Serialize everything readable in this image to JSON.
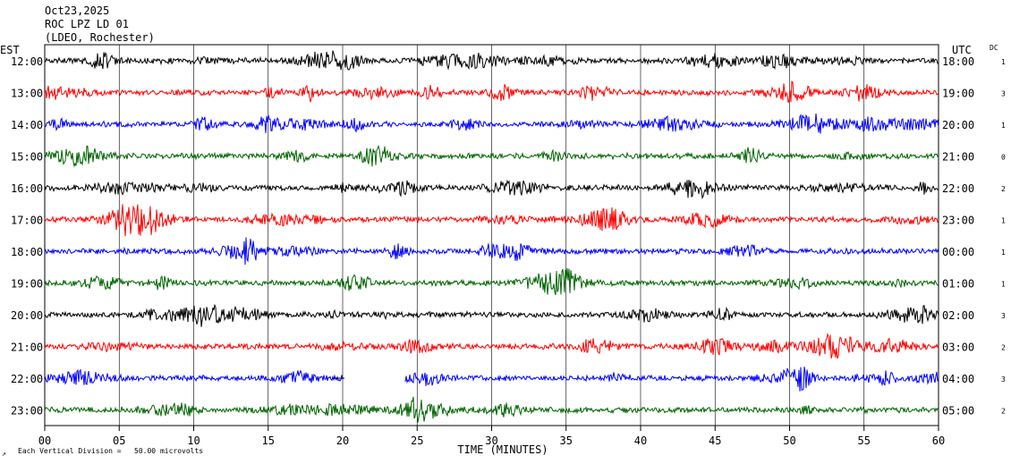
{
  "header": {
    "date": "Oct23,2025",
    "station": "ROC LPZ LD 01",
    "network": "(LDEO, Rochester)"
  },
  "left_axis_title": "EST",
  "right_axis_title": "UTC",
  "dc_title": "DC",
  "footer": {
    "scale_note": "Each Vertical Division =   50.00 microvolts",
    "corner_mark": "↗",
    "xlabel": "TIME (MINUTES)"
  },
  "chart_data": {
    "type": "line",
    "title": "ROC LPZ LD 01",
    "xlabel": "TIME (MINUTES)",
    "ylabel": "",
    "xlim": [
      0,
      60
    ],
    "x_ticks": [
      "00",
      "05",
      "10",
      "15",
      "20",
      "25",
      "30",
      "35",
      "40",
      "45",
      "50",
      "55",
      "60"
    ],
    "grid": true,
    "colors": [
      "#000000",
      "#ff0000",
      "#0000ff",
      "#006400"
    ],
    "rows": [
      {
        "est": "12:00",
        "utc": "18:00",
        "dc": "1"
      },
      {
        "est": "13:00",
        "utc": "19:00",
        "dc": "3"
      },
      {
        "est": "14:00",
        "utc": "20:00",
        "dc": "1"
      },
      {
        "est": "15:00",
        "utc": "21:00",
        "dc": "0"
      },
      {
        "est": "16:00",
        "utc": "22:00",
        "dc": "2"
      },
      {
        "est": "17:00",
        "utc": "23:00",
        "dc": "1"
      },
      {
        "est": "18:00",
        "utc": "00:00",
        "dc": "1"
      },
      {
        "est": "19:00",
        "utc": "01:00",
        "dc": "1"
      },
      {
        "est": "20:00",
        "utc": "02:00",
        "dc": "3"
      },
      {
        "est": "21:00",
        "utc": "03:00",
        "dc": "2"
      },
      {
        "est": "22:00",
        "utc": "04:00",
        "dc": "3",
        "gap_minutes": [
          20.0,
          24.2
        ]
      },
      {
        "est": "23:00",
        "utc": "05:00",
        "dc": "2"
      }
    ]
  }
}
